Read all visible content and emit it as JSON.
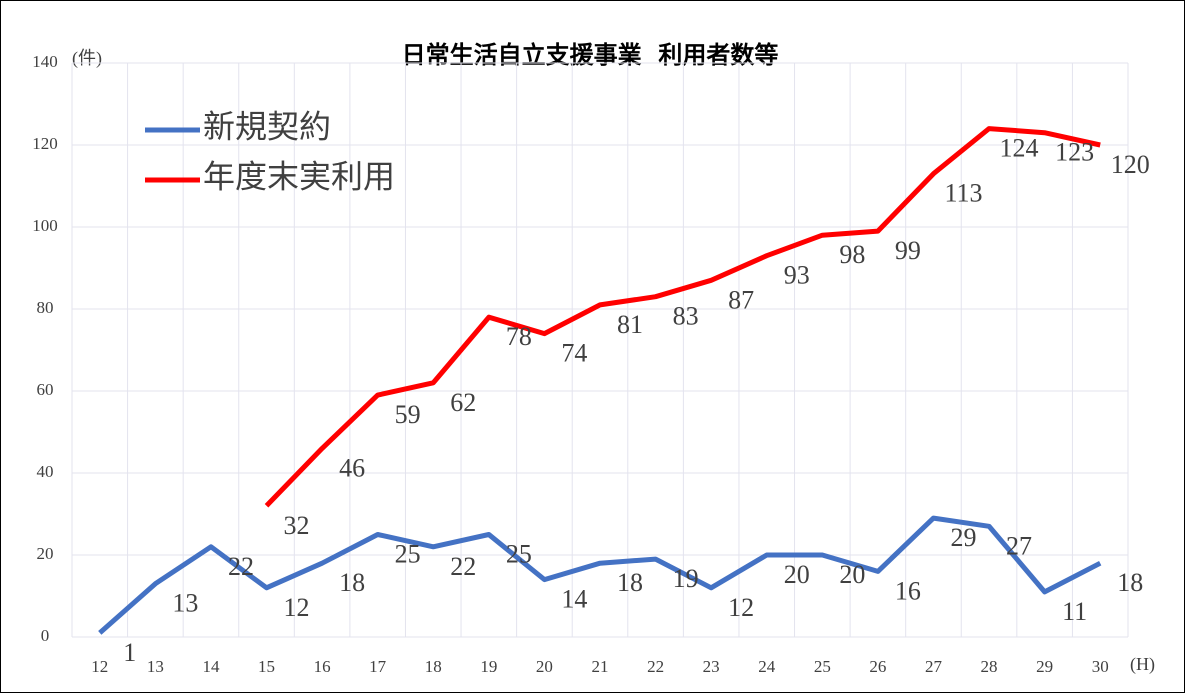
{
  "chart_data": {
    "type": "line",
    "title": "日常生活自立支援事業  利用者数等",
    "y_unit": "(件)",
    "x_unit": "(H)",
    "categories": [
      "12",
      "13",
      "14",
      "15",
      "16",
      "17",
      "18",
      "19",
      "20",
      "21",
      "22",
      "23",
      "24",
      "25",
      "26",
      "27",
      "28",
      "29",
      "30"
    ],
    "series": [
      {
        "name": "新規契約",
        "color": "#4472c4",
        "values": [
          1,
          13,
          22,
          12,
          18,
          25,
          22,
          25,
          14,
          18,
          19,
          12,
          20,
          20,
          16,
          29,
          27,
          11,
          18
        ]
      },
      {
        "name": "年度末実利用",
        "color": "#ff0000",
        "values": [
          null,
          null,
          null,
          32,
          46,
          59,
          62,
          78,
          74,
          81,
          83,
          87,
          93,
          98,
          99,
          113,
          124,
          123,
          120
        ]
      }
    ],
    "ylim": [
      0,
      140
    ],
    "yticks": [
      0,
      20,
      40,
      60,
      80,
      100,
      120,
      140
    ],
    "grid": true,
    "legend": "upper left"
  }
}
